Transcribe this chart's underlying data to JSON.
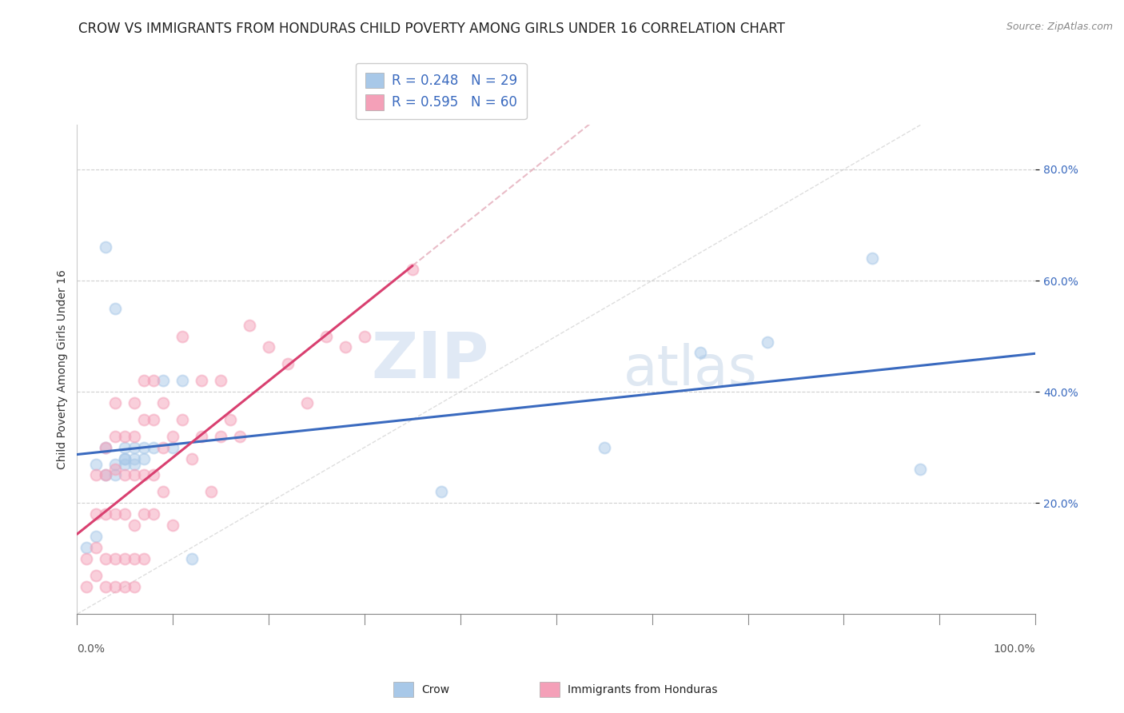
{
  "title": "CROW VS IMMIGRANTS FROM HONDURAS CHILD POVERTY AMONG GIRLS UNDER 16 CORRELATION CHART",
  "source": "Source: ZipAtlas.com",
  "ylabel": "Child Poverty Among Girls Under 16",
  "xlim": [
    0.0,
    1.0
  ],
  "ylim": [
    0.0,
    0.88
  ],
  "yticks": [
    0.2,
    0.4,
    0.6,
    0.8
  ],
  "ytick_labels": [
    "20.0%",
    "40.0%",
    "60.0%",
    "80.0%"
  ],
  "xtick_labels_left": "0.0%",
  "xtick_labels_right": "100.0%",
  "crow_color": "#a8c8e8",
  "honduras_color": "#f4a0b8",
  "crow_line_color": "#3a6abf",
  "honduras_line_color": "#d94070",
  "legend_text_color": "#3a6abf",
  "watermark_zip": "ZIP",
  "watermark_atlas": "atlas",
  "crow_R": 0.248,
  "crow_N": 29,
  "honduras_R": 0.595,
  "honduras_N": 60,
  "crow_scatter_x": [
    0.01,
    0.02,
    0.02,
    0.03,
    0.03,
    0.03,
    0.04,
    0.04,
    0.04,
    0.05,
    0.05,
    0.05,
    0.05,
    0.06,
    0.06,
    0.06,
    0.07,
    0.07,
    0.08,
    0.09,
    0.1,
    0.11,
    0.12,
    0.38,
    0.55,
    0.65,
    0.72,
    0.83,
    0.88
  ],
  "crow_scatter_y": [
    0.12,
    0.14,
    0.27,
    0.25,
    0.3,
    0.66,
    0.25,
    0.27,
    0.55,
    0.27,
    0.28,
    0.28,
    0.3,
    0.27,
    0.28,
    0.3,
    0.28,
    0.3,
    0.3,
    0.42,
    0.3,
    0.42,
    0.1,
    0.22,
    0.3,
    0.47,
    0.49,
    0.64,
    0.26
  ],
  "honduras_scatter_x": [
    0.01,
    0.01,
    0.02,
    0.02,
    0.02,
    0.02,
    0.03,
    0.03,
    0.03,
    0.03,
    0.03,
    0.04,
    0.04,
    0.04,
    0.04,
    0.04,
    0.04,
    0.05,
    0.05,
    0.05,
    0.05,
    0.05,
    0.06,
    0.06,
    0.06,
    0.06,
    0.06,
    0.06,
    0.07,
    0.07,
    0.07,
    0.07,
    0.07,
    0.08,
    0.08,
    0.08,
    0.08,
    0.09,
    0.09,
    0.09,
    0.1,
    0.1,
    0.11,
    0.11,
    0.12,
    0.13,
    0.13,
    0.14,
    0.15,
    0.15,
    0.16,
    0.17,
    0.18,
    0.2,
    0.22,
    0.24,
    0.26,
    0.28,
    0.3,
    0.35
  ],
  "honduras_scatter_y": [
    0.05,
    0.1,
    0.07,
    0.12,
    0.18,
    0.25,
    0.05,
    0.1,
    0.18,
    0.25,
    0.3,
    0.05,
    0.1,
    0.18,
    0.26,
    0.32,
    0.38,
    0.05,
    0.1,
    0.18,
    0.25,
    0.32,
    0.05,
    0.1,
    0.16,
    0.25,
    0.32,
    0.38,
    0.1,
    0.18,
    0.25,
    0.35,
    0.42,
    0.18,
    0.25,
    0.35,
    0.42,
    0.22,
    0.3,
    0.38,
    0.16,
    0.32,
    0.35,
    0.5,
    0.28,
    0.32,
    0.42,
    0.22,
    0.32,
    0.42,
    0.35,
    0.32,
    0.52,
    0.48,
    0.45,
    0.38,
    0.5,
    0.48,
    0.5,
    0.62
  ],
  "background_color": "#ffffff",
  "grid_color": "#d0d0d0",
  "title_fontsize": 12,
  "axis_label_fontsize": 10,
  "tick_fontsize": 10,
  "legend_fontsize": 12,
  "marker_size": 100,
  "marker_alpha": 0.5,
  "marker_linewidth": 1.5
}
